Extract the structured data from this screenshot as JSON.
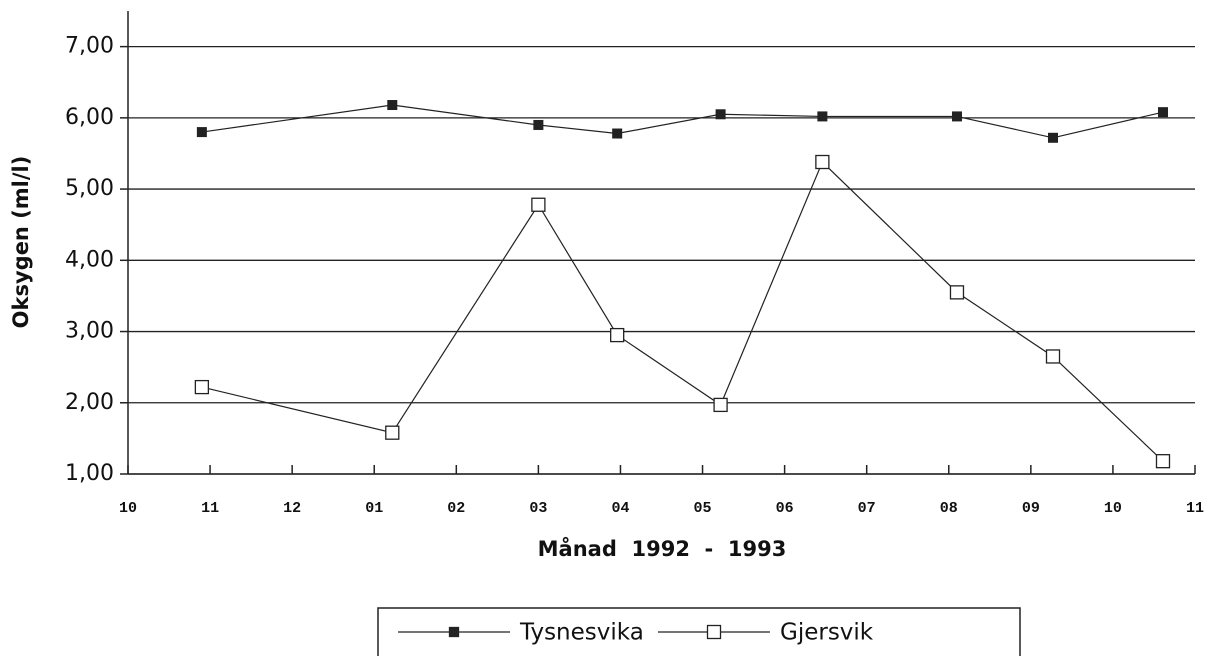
{
  "chart_data": {
    "type": "line",
    "xlabel": "Månad  1992  -  1993",
    "ylabel": "Oksygen (ml/l)",
    "x": [
      0.9,
      3.22,
      5.0,
      5.96,
      7.22,
      8.46,
      10.1,
      11.27,
      12.61
    ],
    "series": [
      {
        "name": "Tysnesvika",
        "color": "#222222",
        "marker": "filled-square",
        "values": [
          5.8,
          6.18,
          5.9,
          5.78,
          6.05,
          6.02,
          6.02,
          5.72,
          6.08
        ]
      },
      {
        "name": "Gjersvik",
        "color": "#222222",
        "marker": "open-square",
        "values": [
          2.22,
          1.58,
          4.78,
          2.95,
          1.97,
          5.38,
          3.55,
          2.65,
          1.18
        ]
      }
    ],
    "xlim": [
      0,
      13
    ],
    "xticks": [
      {
        "value": 0,
        "label": "10"
      },
      {
        "value": 1,
        "label": "11"
      },
      {
        "value": 2,
        "label": "12"
      },
      {
        "value": 3,
        "label": "01"
      },
      {
        "value": 4,
        "label": "02"
      },
      {
        "value": 5,
        "label": "03"
      },
      {
        "value": 6,
        "label": "04"
      },
      {
        "value": 7,
        "label": "05"
      },
      {
        "value": 8,
        "label": "06"
      },
      {
        "value": 9,
        "label": "07"
      },
      {
        "value": 10,
        "label": "08"
      },
      {
        "value": 11,
        "label": "09"
      },
      {
        "value": 12,
        "label": "10"
      },
      {
        "value": 13,
        "label": "11"
      }
    ],
    "ylim": [
      1,
      7.5
    ],
    "yticks": [
      {
        "value": 1,
        "label": "1,00"
      },
      {
        "value": 2,
        "label": "2,00"
      },
      {
        "value": 3,
        "label": "3,00"
      },
      {
        "value": 4,
        "label": "4,00"
      },
      {
        "value": 5,
        "label": "5,00"
      },
      {
        "value": 6,
        "label": "6,00"
      },
      {
        "value": 7,
        "label": "7,00"
      }
    ],
    "grid": true,
    "legend": "bottom"
  }
}
